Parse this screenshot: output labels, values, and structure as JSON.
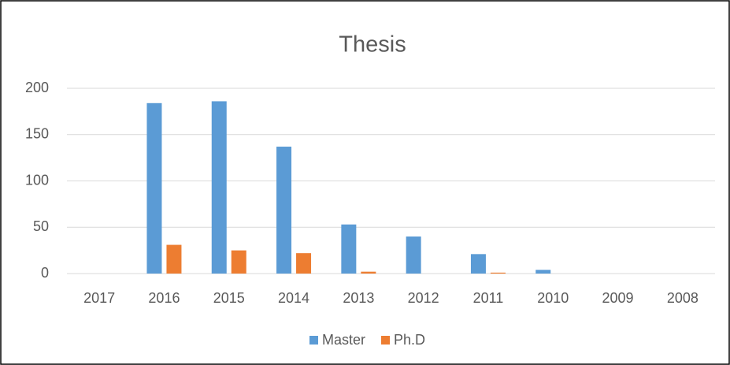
{
  "chart_data": {
    "type": "bar",
    "title": "Thesis",
    "categories": [
      "2017",
      "2016",
      "2015",
      "2014",
      "2013",
      "2012",
      "2011",
      "2010",
      "2009",
      "2008"
    ],
    "series": [
      {
        "name": "Master",
        "color": "#5b9bd5",
        "values": [
          0,
          184,
          186,
          137,
          53,
          40,
          21,
          4,
          0,
          0
        ]
      },
      {
        "name": "Ph.D",
        "color": "#ed7d31",
        "values": [
          0,
          31,
          25,
          22,
          2,
          0,
          1,
          0,
          0,
          0
        ]
      }
    ],
    "ylim": [
      0,
      200
    ],
    "yticks": [
      0,
      50,
      100,
      150,
      200
    ],
    "grid": true,
    "legend": "bottom"
  }
}
